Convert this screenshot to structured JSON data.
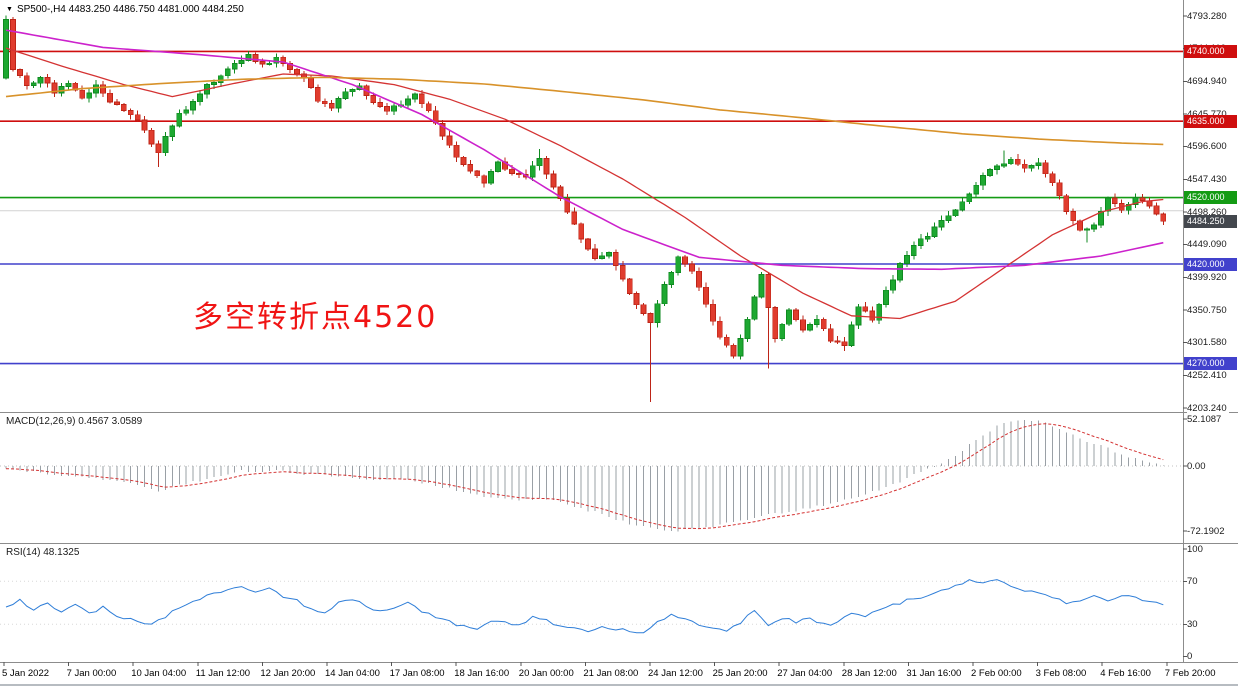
{
  "window": {
    "title": "SP500- H4 chart",
    "bg": "#ffffff"
  },
  "symbol_bar": {
    "marker_icon": "▼",
    "text": "SP500-,H4 4483.250 4486.750 4481.000 4484.250"
  },
  "annotation": {
    "text": "多空转折点4520",
    "color": "#f01414"
  },
  "panels": {
    "macd": {
      "title": "MACD(12,26,9) 0.4567 3.0589",
      "axis_labels": [
        "52.1087",
        "0.00",
        "-72.1902"
      ]
    },
    "rsi": {
      "title": "RSI(14) 48.1325",
      "axis_labels": [
        "100",
        "70",
        "30",
        "0"
      ]
    }
  },
  "price_axis": {
    "plain_labels": [
      "4793.280",
      "4744.110",
      "4694.940",
      "4645.770",
      "4596.600",
      "4547.430",
      "4498.260",
      "4449.090",
      "4399.920",
      "4350.750",
      "4301.580",
      "4252.410",
      "4203.240"
    ],
    "last_price_tag": {
      "price": 4484.25,
      "label": "4484.250",
      "color": "#43474d"
    }
  },
  "time_axis": {
    "labels": [
      "5 Jan 2022",
      "7 Jan 00:00",
      "10 Jan 04:00",
      "11 Jan 12:00",
      "12 Jan 20:00",
      "14 Jan 04:00",
      "17 Jan 08:00",
      "18 Jan 16:00",
      "20 Jan 00:00",
      "21 Jan 08:00",
      "24 Jan 12:00",
      "25 Jan 20:00",
      "27 Jan 04:00",
      "28 Jan 12:00",
      "31 Jan 16:00",
      "2 Feb 00:00",
      "3 Feb 08:00",
      "4 Feb 16:00",
      "7 Feb 20:00"
    ]
  },
  "chart_data": {
    "type": "candlestick",
    "symbol": "SP500-",
    "timeframe": "H4",
    "quote": {
      "open": 4483.25,
      "high": 4486.75,
      "low": 4481.0,
      "close": 4484.25
    },
    "ylim": [
      4203.24,
      4793.28
    ],
    "bars": 168,
    "first_open": 4700,
    "close_anchors": [
      [
        0,
        4788
      ],
      [
        1,
        4715
      ],
      [
        3,
        4690
      ],
      [
        5,
        4700
      ],
      [
        7,
        4680
      ],
      [
        9,
        4695
      ],
      [
        11,
        4670
      ],
      [
        13,
        4690
      ],
      [
        15,
        4665
      ],
      [
        17,
        4650
      ],
      [
        19,
        4638
      ],
      [
        21,
        4600
      ],
      [
        22,
        4585
      ],
      [
        23,
        4615
      ],
      [
        25,
        4645
      ],
      [
        27,
        4662
      ],
      [
        29,
        4688
      ],
      [
        31,
        4702
      ],
      [
        33,
        4722
      ],
      [
        35,
        4736
      ],
      [
        37,
        4718
      ],
      [
        39,
        4732
      ],
      [
        41,
        4712
      ],
      [
        43,
        4698
      ],
      [
        45,
        4668
      ],
      [
        47,
        4652
      ],
      [
        49,
        4682
      ],
      [
        51,
        4688
      ],
      [
        53,
        4662
      ],
      [
        55,
        4652
      ],
      [
        57,
        4662
      ],
      [
        59,
        4678
      ],
      [
        61,
        4648
      ],
      [
        63,
        4612
      ],
      [
        65,
        4582
      ],
      [
        67,
        4558
      ],
      [
        69,
        4542
      ],
      [
        71,
        4572
      ],
      [
        73,
        4558
      ],
      [
        75,
        4552
      ],
      [
        77,
        4578
      ],
      [
        79,
        4538
      ],
      [
        81,
        4498
      ],
      [
        83,
        4458
      ],
      [
        85,
        4428
      ],
      [
        87,
        4438
      ],
      [
        89,
        4398
      ],
      [
        91,
        4358
      ],
      [
        93,
        4332
      ],
      [
        95,
        4388
      ],
      [
        97,
        4428
      ],
      [
        99,
        4408
      ],
      [
        101,
        4358
      ],
      [
        103,
        4308
      ],
      [
        105,
        4282
      ],
      [
        107,
        4338
      ],
      [
        109,
        4402
      ],
      [
        111,
        4308
      ],
      [
        113,
        4348
      ],
      [
        115,
        4318
      ],
      [
        117,
        4338
      ],
      [
        119,
        4302
      ],
      [
        121,
        4298
      ],
      [
        123,
        4358
      ],
      [
        125,
        4338
      ],
      [
        127,
        4378
      ],
      [
        129,
        4418
      ],
      [
        131,
        4448
      ],
      [
        133,
        4462
      ],
      [
        135,
        4488
      ],
      [
        137,
        4502
      ],
      [
        139,
        4528
      ],
      [
        141,
        4552
      ],
      [
        143,
        4568
      ],
      [
        145,
        4578
      ],
      [
        147,
        4562
      ],
      [
        149,
        4572
      ],
      [
        151,
        4542
      ],
      [
        153,
        4498
      ],
      [
        155,
        4468
      ],
      [
        157,
        4478
      ],
      [
        159,
        4518
      ],
      [
        161,
        4502
      ],
      [
        163,
        4522
      ],
      [
        165,
        4508
      ],
      [
        167,
        4484.25
      ]
    ],
    "wick_overrides": {
      "0": {
        "high": 4794,
        "low": 4698
      },
      "22": {
        "low": 4566
      },
      "77": {
        "high": 4593
      },
      "93": {
        "low": 4212.5
      },
      "110": {
        "low": 4263
      },
      "121": {
        "low": 4289
      },
      "144": {
        "high": 4591
      },
      "156": {
        "low": 4452
      }
    },
    "colors": {
      "up_fill": "#1da831",
      "up_stroke": "#0f8a20",
      "down_fill": "#e03c2e",
      "down_stroke": "#bd2417",
      "ma_fast": "#d43333",
      "ma_mid": "#cc22cc",
      "ma_slow": "#d8922a",
      "macd_hist": "#9aa0a6",
      "macd_signal": "#d43333",
      "rsi_line": "#2f7ed8"
    },
    "horizontal_levels": [
      {
        "price": 4740.0,
        "label": "4740.000",
        "color": "#cf0e0e",
        "tag": true
      },
      {
        "price": 4635.0,
        "label": "4635.000",
        "color": "#cf0e0e",
        "tag": true
      },
      {
        "price": 4520.0,
        "label": "4520.000",
        "color": "#149b14",
        "tag": true
      },
      {
        "price": 4420.0,
        "label": "4420.000",
        "color": "#4141cc",
        "tag": true
      },
      {
        "price": 4270.0,
        "label": "4270.000",
        "color": "#4141cc",
        "tag": true
      },
      {
        "price": 4500.0,
        "label": "",
        "color": "#d2d2d2",
        "tag": false
      }
    ],
    "moving_averages": [
      {
        "name": "fast-red",
        "points": [
          [
            0,
            4745
          ],
          [
            8,
            4718
          ],
          [
            17,
            4690
          ],
          [
            24,
            4672
          ],
          [
            33,
            4692
          ],
          [
            40,
            4706
          ],
          [
            47,
            4703
          ],
          [
            56,
            4690
          ],
          [
            64,
            4668
          ],
          [
            72,
            4638
          ],
          [
            80,
            4598
          ],
          [
            89,
            4548
          ],
          [
            98,
            4490
          ],
          [
            106,
            4432
          ],
          [
            115,
            4376
          ],
          [
            122,
            4342
          ],
          [
            129,
            4338
          ],
          [
            137,
            4364
          ],
          [
            144,
            4414
          ],
          [
            151,
            4464
          ],
          [
            158,
            4498
          ],
          [
            164,
            4514
          ],
          [
            167,
            4517
          ]
        ]
      },
      {
        "name": "mid-magenta",
        "points": [
          [
            0,
            4772
          ],
          [
            14,
            4746
          ],
          [
            28,
            4735
          ],
          [
            40,
            4724
          ],
          [
            50,
            4690
          ],
          [
            60,
            4645
          ],
          [
            69,
            4592
          ],
          [
            80,
            4521
          ],
          [
            89,
            4472
          ],
          [
            100,
            4430
          ],
          [
            112,
            4418
          ],
          [
            124,
            4413
          ],
          [
            135,
            4412
          ],
          [
            147,
            4418
          ],
          [
            158,
            4432
          ],
          [
            167,
            4452
          ]
        ]
      },
      {
        "name": "slow-orange",
        "points": [
          [
            0,
            4672
          ],
          [
            11,
            4684
          ],
          [
            23,
            4692
          ],
          [
            34,
            4698
          ],
          [
            46,
            4701
          ],
          [
            57,
            4698
          ],
          [
            69,
            4691
          ],
          [
            80,
            4680
          ],
          [
            92,
            4667
          ],
          [
            103,
            4652
          ],
          [
            115,
            4640
          ],
          [
            126,
            4628
          ],
          [
            138,
            4616
          ],
          [
            149,
            4608
          ],
          [
            161,
            4602
          ],
          [
            167,
            4600
          ]
        ]
      }
    ],
    "macd": {
      "params": "12,26,9",
      "value": 0.4567,
      "signal_value": 3.0589,
      "range": [
        -72.1902,
        52.1087
      ],
      "hist_anchors": [
        [
          0,
          -3
        ],
        [
          4,
          -7
        ],
        [
          8,
          -10
        ],
        [
          12,
          -13
        ],
        [
          16,
          -16
        ],
        [
          20,
          -24
        ],
        [
          22,
          -27
        ],
        [
          26,
          -20
        ],
        [
          30,
          -11
        ],
        [
          34,
          -6
        ],
        [
          38,
          -5
        ],
        [
          42,
          -8
        ],
        [
          46,
          -11
        ],
        [
          50,
          -13
        ],
        [
          54,
          -15
        ],
        [
          58,
          -16
        ],
        [
          62,
          -21
        ],
        [
          66,
          -29
        ],
        [
          70,
          -35
        ],
        [
          74,
          -37
        ],
        [
          78,
          -37
        ],
        [
          82,
          -45
        ],
        [
          86,
          -54
        ],
        [
          90,
          -64
        ],
        [
          94,
          -71
        ],
        [
          97,
          -72
        ],
        [
          100,
          -69
        ],
        [
          104,
          -64
        ],
        [
          108,
          -57
        ],
        [
          112,
          -52
        ],
        [
          116,
          -47
        ],
        [
          120,
          -40
        ],
        [
          124,
          -32
        ],
        [
          128,
          -21
        ],
        [
          131,
          -10
        ],
        [
          134,
          0
        ],
        [
          137,
          12
        ],
        [
          140,
          30
        ],
        [
          143,
          44
        ],
        [
          145,
          50
        ],
        [
          147,
          52
        ],
        [
          149,
          50
        ],
        [
          151,
          45
        ],
        [
          153,
          38
        ],
        [
          155,
          31
        ],
        [
          157,
          25
        ],
        [
          159,
          19
        ],
        [
          161,
          13
        ],
        [
          163,
          8
        ],
        [
          165,
          4
        ],
        [
          167,
          0.46
        ]
      ]
    },
    "rsi": {
      "period": 14,
      "value": 48.1325,
      "levels": [
        30,
        70
      ],
      "anchors": [
        [
          0,
          46
        ],
        [
          2,
          52
        ],
        [
          4,
          44
        ],
        [
          6,
          50
        ],
        [
          8,
          42
        ],
        [
          10,
          48
        ],
        [
          12,
          40
        ],
        [
          14,
          46
        ],
        [
          16,
          38
        ],
        [
          18,
          35
        ],
        [
          20,
          30
        ],
        [
          22,
          33
        ],
        [
          24,
          42
        ],
        [
          26,
          48
        ],
        [
          28,
          54
        ],
        [
          30,
          58
        ],
        [
          32,
          62
        ],
        [
          34,
          65
        ],
        [
          36,
          60
        ],
        [
          38,
          64
        ],
        [
          40,
          56
        ],
        [
          42,
          52
        ],
        [
          44,
          44
        ],
        [
          46,
          40
        ],
        [
          48,
          50
        ],
        [
          50,
          54
        ],
        [
          52,
          46
        ],
        [
          54,
          42
        ],
        [
          56,
          46
        ],
        [
          58,
          50
        ],
        [
          60,
          42
        ],
        [
          62,
          36
        ],
        [
          64,
          32
        ],
        [
          66,
          28
        ],
        [
          68,
          26
        ],
        [
          70,
          34
        ],
        [
          72,
          32
        ],
        [
          74,
          30
        ],
        [
          76,
          36
        ],
        [
          78,
          34
        ],
        [
          80,
          28
        ],
        [
          82,
          26
        ],
        [
          84,
          24
        ],
        [
          86,
          28
        ],
        [
          88,
          26
        ],
        [
          90,
          24
        ],
        [
          92,
          22
        ],
        [
          94,
          32
        ],
        [
          96,
          38
        ],
        [
          98,
          36
        ],
        [
          100,
          30
        ],
        [
          102,
          26
        ],
        [
          104,
          24
        ],
        [
          106,
          32
        ],
        [
          108,
          42
        ],
        [
          110,
          30
        ],
        [
          112,
          36
        ],
        [
          114,
          32
        ],
        [
          116,
          36
        ],
        [
          118,
          30
        ],
        [
          120,
          31
        ],
        [
          122,
          40
        ],
        [
          124,
          37
        ],
        [
          126,
          43
        ],
        [
          128,
          48
        ],
        [
          130,
          52
        ],
        [
          132,
          55
        ],
        [
          134,
          59
        ],
        [
          136,
          63
        ],
        [
          138,
          68
        ],
        [
          139,
          72
        ],
        [
          141,
          69
        ],
        [
          143,
          71
        ],
        [
          145,
          66
        ],
        [
          147,
          62
        ],
        [
          149,
          58
        ],
        [
          151,
          55
        ],
        [
          153,
          50
        ],
        [
          155,
          52
        ],
        [
          157,
          56
        ],
        [
          159,
          53
        ],
        [
          161,
          57
        ],
        [
          163,
          54
        ],
        [
          165,
          52
        ],
        [
          167,
          48.13
        ]
      ]
    }
  }
}
